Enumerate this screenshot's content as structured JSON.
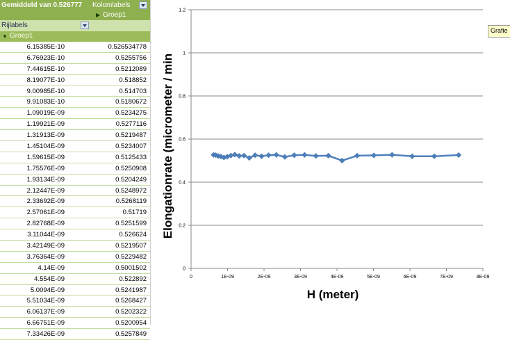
{
  "pivot": {
    "value_field": "Gemiddeld van 0.526777",
    "column_labels": "Kolomlabels",
    "column_group": "Groep1",
    "row_labels": "Rijlabels",
    "row_group": "Groep1",
    "rows": [
      {
        "label": "6.15385E-10",
        "value": "0.526534778"
      },
      {
        "label": "6.76923E-10",
        "value": "0.5255756"
      },
      {
        "label": "7.44615E-10",
        "value": "0.5212089"
      },
      {
        "label": "8.19077E-10",
        "value": "0.518852"
      },
      {
        "label": "9.00985E-10",
        "value": "0.514703"
      },
      {
        "label": "9.91083E-10",
        "value": "0.5180672"
      },
      {
        "label": "1.09019E-09",
        "value": "0.5234275"
      },
      {
        "label": "1.19921E-09",
        "value": "0.5277116"
      },
      {
        "label": "1.31913E-09",
        "value": "0.5219487"
      },
      {
        "label": "1.45104E-09",
        "value": "0.5234007"
      },
      {
        "label": "1.59615E-09",
        "value": "0.5125433"
      },
      {
        "label": "1.75576E-09",
        "value": "0.5250908"
      },
      {
        "label": "1.93134E-09",
        "value": "0.5204249"
      },
      {
        "label": "2.12447E-09",
        "value": "0.5248972"
      },
      {
        "label": "2.33692E-09",
        "value": "0.5268119"
      },
      {
        "label": "2.57061E-09",
        "value": "0.51719"
      },
      {
        "label": "2.82768E-09",
        "value": "0.5251599"
      },
      {
        "label": "3.11044E-09",
        "value": "0.526624"
      },
      {
        "label": "3.42149E-09",
        "value": "0.5219507"
      },
      {
        "label": "3.76364E-09",
        "value": "0.5229482"
      },
      {
        "label": "4.14E-09",
        "value": "0.5001502"
      },
      {
        "label": "4.554E-09",
        "value": "0.522892"
      },
      {
        "label": "5.0094E-09",
        "value": "0.5241987"
      },
      {
        "label": "5.51034E-09",
        "value": "0.5268427"
      },
      {
        "label": "6.06137E-09",
        "value": "0.5202322"
      },
      {
        "label": "6.66751E-09",
        "value": "0.5200954"
      },
      {
        "label": "7.33426E-09",
        "value": "0.5257849"
      }
    ]
  },
  "tooltip": "Grafie",
  "chart_data": {
    "type": "line",
    "xlabel": "H (meter)",
    "ylabel": "Elongationrate (micrometer / min",
    "xlim": [
      0,
      8e-09
    ],
    "ylim": [
      0,
      1.2
    ],
    "x_ticks": [
      "0",
      "1E-09",
      "2E-09",
      "3E-09",
      "4E-09",
      "5E-09",
      "6E-09",
      "7E-09",
      "8E-09"
    ],
    "y_ticks": [
      "0",
      "0.2",
      "0.4",
      "0.6",
      "0.8",
      "1",
      "1.2"
    ],
    "grid": "horizontal",
    "color": "#4f81bd",
    "x": [
      6.15385e-10,
      6.76923e-10,
      7.44615e-10,
      8.19077e-10,
      9.00985e-10,
      9.91083e-10,
      1.09019e-09,
      1.19921e-09,
      1.31913e-09,
      1.45104e-09,
      1.59615e-09,
      1.75576e-09,
      1.93134e-09,
      2.12447e-09,
      2.33692e-09,
      2.57061e-09,
      2.82768e-09,
      3.11044e-09,
      3.42149e-09,
      3.76364e-09,
      4.14e-09,
      4.554e-09,
      5.0094e-09,
      5.51034e-09,
      6.06137e-09,
      6.66751e-09,
      7.33426e-09
    ],
    "y": [
      0.526534778,
      0.5255756,
      0.5212089,
      0.518852,
      0.514703,
      0.5180672,
      0.5234275,
      0.5277116,
      0.5219487,
      0.5234007,
      0.5125433,
      0.5250908,
      0.5204249,
      0.5248972,
      0.5268119,
      0.51719,
      0.5251599,
      0.526624,
      0.5219507,
      0.5229482,
      0.5001502,
      0.522892,
      0.5241987,
      0.5268427,
      0.5202322,
      0.5200954,
      0.5257849
    ]
  }
}
